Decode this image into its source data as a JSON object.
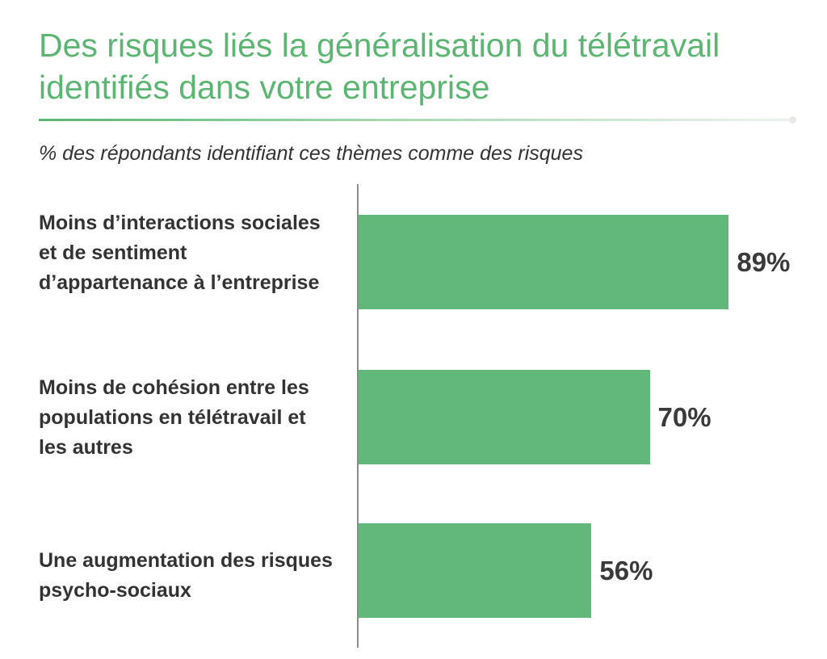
{
  "chart_data": {
    "type": "bar",
    "orientation": "horizontal",
    "title": "Des risques liés la généralisation du télétravail identifiés dans votre entreprise",
    "subtitle": "% des répondants identifiant ces thèmes comme des risques",
    "categories": [
      "Moins d’interactions sociales et de sentiment d’appartenance à l’entreprise",
      "Moins de cohésion entre les populations en télétravail et les autres",
      "Une augmentation des risques psycho-sociaux"
    ],
    "values": [
      89,
      70,
      56
    ],
    "value_labels": [
      "89%",
      "70%",
      "56%"
    ],
    "xlabel": "",
    "ylabel": "",
    "xlim": [
      0,
      100
    ],
    "grid": false,
    "legend": "none",
    "colors": {
      "bar": "#61b87a",
      "title": "#5cb572",
      "text": "#333333"
    }
  }
}
